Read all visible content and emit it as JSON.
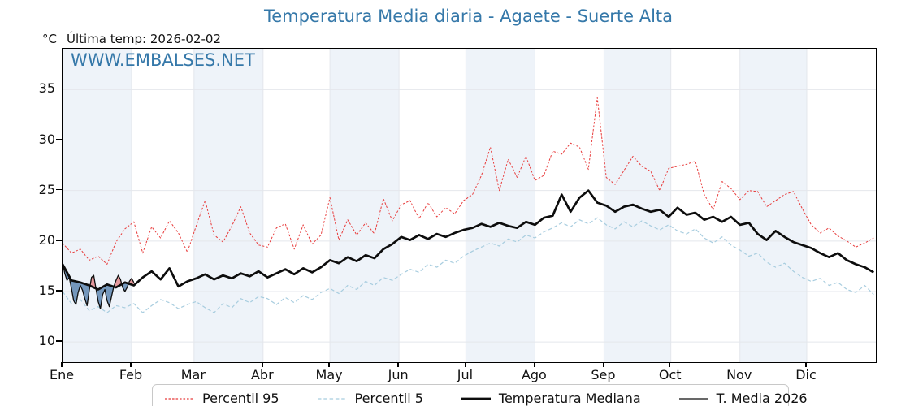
{
  "title": "Temperatura Media diaria - Agaete - Suerte Alta",
  "header": {
    "y_unit": "°C",
    "last_temp": "Última temp: 2026-02-02"
  },
  "watermark": "WWW.EMBALSES.NET",
  "colors": {
    "title_blue": "#3578a9",
    "watermark_blue": "#3578a9",
    "percentil95_red": "#e83c3c",
    "percentil5_blue": "#a8cddf",
    "median_black": "#0d0d0d",
    "fill_above_pink": "rgba(226,130,134,0.8)",
    "fill_below_blue": "rgba(82,124,170,0.78)",
    "month_band": "#eef3f9",
    "gridline": "#e4e7ec"
  },
  "chart_data": {
    "type": "line",
    "title": "Temperatura Media diaria - Agaete - Suerte Alta",
    "ylabel": "°C",
    "ylim": [
      8,
      39.05
    ],
    "y_ticks": [
      10,
      15,
      20,
      25,
      30,
      35
    ],
    "x_tick_labels": [
      "Ene",
      "Feb",
      "Mar",
      "Abr",
      "May",
      "Jun",
      "Jul",
      "Ago",
      "Sep",
      "Oct",
      "Nov",
      "Dic"
    ],
    "month_start_days": [
      1,
      32,
      60,
      91,
      121,
      152,
      182,
      213,
      244,
      274,
      305,
      335,
      366
    ],
    "legend_position": "bottom",
    "grid": true,
    "series": [
      {
        "name": "Percentil 95",
        "color": "#e83c3c",
        "dash": "2.6 1.9",
        "width": 1.0,
        "day_start": 1,
        "day_step": 4,
        "values": [
          19.8,
          18.8,
          19.2,
          18.1,
          18.5,
          17.7,
          19.9,
          21.2,
          21.9,
          18.8,
          21.4,
          20.3,
          22.0,
          20.8,
          18.9,
          21.5,
          24.0,
          20.6,
          19.9,
          21.5,
          23.4,
          20.8,
          19.6,
          19.4,
          21.3,
          21.7,
          19.2,
          21.6,
          19.7,
          20.6,
          24.3,
          20.1,
          22.1,
          20.6,
          21.8,
          20.7,
          24.2,
          22.0,
          23.6,
          24.0,
          22.2,
          23.8,
          22.4,
          23.3,
          22.7,
          24.0,
          24.6,
          26.5,
          29.3,
          25.0,
          28.1,
          26.3,
          28.4,
          26.0,
          26.5,
          28.9,
          28.6,
          29.7,
          29.3,
          27.1,
          34.2,
          26.3,
          25.6,
          27.0,
          28.4,
          27.4,
          26.9,
          25.0,
          27.2,
          27.4,
          27.6,
          27.9,
          24.6,
          23.1,
          25.9,
          25.2,
          24.1,
          25.0,
          24.9,
          23.4,
          24.0,
          24.6,
          24.9,
          23.2,
          21.6,
          20.8,
          21.3,
          20.5,
          20.0,
          19.4,
          19.8,
          20.3
        ]
      },
      {
        "name": "Percentil 5",
        "color": "#a8cddf",
        "dash": "4.5 2.8",
        "width": 1.2,
        "day_start": 1,
        "day_step": 4,
        "values": [
          15.0,
          13.8,
          14.2,
          13.1,
          13.5,
          12.9,
          13.6,
          13.4,
          13.8,
          12.9,
          13.6,
          14.2,
          13.9,
          13.3,
          13.7,
          14.0,
          13.4,
          12.9,
          13.8,
          13.4,
          14.3,
          13.9,
          14.5,
          14.3,
          13.7,
          14.4,
          13.9,
          14.6,
          14.2,
          14.9,
          15.3,
          14.8,
          15.6,
          15.2,
          16.0,
          15.6,
          16.4,
          16.1,
          16.7,
          17.2,
          16.9,
          17.7,
          17.4,
          18.1,
          17.8,
          18.5,
          19.0,
          19.4,
          19.8,
          19.5,
          20.2,
          19.9,
          20.6,
          20.3,
          20.9,
          21.3,
          21.8,
          21.4,
          22.1,
          21.7,
          22.3,
          21.6,
          21.2,
          21.9,
          21.4,
          22.0,
          21.5,
          21.1,
          21.6,
          21.0,
          20.7,
          21.2,
          20.3,
          19.8,
          20.4,
          19.6,
          19.1,
          18.5,
          18.8,
          17.9,
          17.4,
          17.8,
          17.0,
          16.4,
          16.0,
          16.3,
          15.6,
          15.9,
          15.2,
          14.9,
          15.6,
          14.7
        ]
      },
      {
        "name": "Temperatura Mediana",
        "color": "#0d0d0d",
        "dash": null,
        "width": 2.7,
        "day_start": 1,
        "day_step": 4,
        "values": [
          17.7,
          16.1,
          15.9,
          15.6,
          15.2,
          15.7,
          15.4,
          15.9,
          15.6,
          16.4,
          17.0,
          16.2,
          17.3,
          15.5,
          16.0,
          16.3,
          16.7,
          16.2,
          16.6,
          16.3,
          16.8,
          16.5,
          17.0,
          16.4,
          16.8,
          17.2,
          16.7,
          17.3,
          16.9,
          17.4,
          18.1,
          17.8,
          18.4,
          18.0,
          18.6,
          18.3,
          19.2,
          19.7,
          20.4,
          20.1,
          20.6,
          20.2,
          20.7,
          20.4,
          20.8,
          21.1,
          21.3,
          21.7,
          21.4,
          21.8,
          21.5,
          21.3,
          21.9,
          21.6,
          22.3,
          22.5,
          24.6,
          22.9,
          24.3,
          25.0,
          23.8,
          23.5,
          22.9,
          23.4,
          23.6,
          23.2,
          22.9,
          23.1,
          22.4,
          23.3,
          22.6,
          22.8,
          22.1,
          22.4,
          21.9,
          22.4,
          21.6,
          21.8,
          20.7,
          20.1,
          21.0,
          20.4,
          19.9,
          19.6,
          19.3,
          18.8,
          18.4,
          18.8,
          18.1,
          17.7,
          17.4,
          16.9
        ]
      },
      {
        "name": "T. Media 2026",
        "color": "#0d0d0d",
        "dash": null,
        "width": 1.3,
        "day_start": 1,
        "day_step": 1,
        "values": [
          17.9,
          16.8,
          16.1,
          16.4,
          15.3,
          14.1,
          13.7,
          14.9,
          15.6,
          15.1,
          14.3,
          13.6,
          15.1,
          16.4,
          16.6,
          15.3,
          14.0,
          13.3,
          14.7,
          15.2,
          14.1,
          13.5,
          14.5,
          15.5,
          16.1,
          16.6,
          16.2,
          15.4,
          15.0,
          15.4,
          16.0,
          16.3,
          15.9
        ]
      }
    ],
    "fill_between": {
      "upper_series": "T. Media 2026",
      "reference_series": "Temperatura Mediana",
      "above_color": "rgba(226,130,134,0.8)",
      "below_color": "rgba(82,124,170,0.78)"
    }
  }
}
